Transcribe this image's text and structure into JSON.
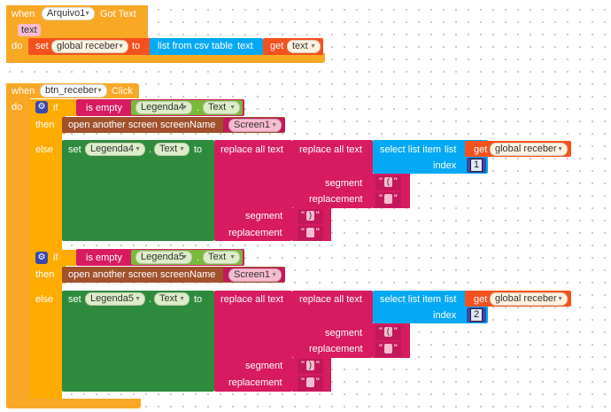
{
  "event1": {
    "when": "when",
    "component": "Arquivo1",
    "event_name": "Got Text",
    "param": "text",
    "do": "do"
  },
  "set_global": {
    "set": "set",
    "var": "global receber",
    "to": "to",
    "list_from_csv": "list from csv table",
    "text_label": "text",
    "get": "get",
    "get_var": "text"
  },
  "event2": {
    "when": "when",
    "component": "btn_receber",
    "event_name": "Click",
    "do": "do"
  },
  "block1": {
    "if": "if",
    "is_empty": "is empty",
    "component": "Legenda4",
    "dot": ".",
    "prop": "Text",
    "then": "then",
    "open_screen": "open another screen",
    "screen_name_label": "screenName",
    "screen": "Screen1",
    "else": "else",
    "set": "set",
    "set_component": "Legenda4",
    "set_prop": "Text",
    "to": "to",
    "replace_outer": "replace all text",
    "replace_inner": "replace all text",
    "select_list": "select list item",
    "list_label": "list",
    "get": "get",
    "get_var": "global receber",
    "index_label": "index",
    "index_value": "1",
    "segment_label": "segment",
    "replacement_label": "replacement",
    "inner_segment": "(",
    "inner_replacement": "",
    "outer_segment": ")",
    "outer_replacement": "",
    "quote": "\""
  },
  "block2": {
    "if": "if",
    "is_empty": "is empty",
    "component": "Legenda5",
    "dot": ".",
    "prop": "Text",
    "then": "then",
    "open_screen": "open another screen",
    "screen_name_label": "screenName",
    "screen": "Screen1",
    "else": "else",
    "set": "set",
    "set_component": "Legenda5",
    "set_prop": "Text",
    "to": "to",
    "replace_outer": "replace all text",
    "replace_inner": "replace all text",
    "select_list": "select list item",
    "list_label": "list",
    "get": "get",
    "get_var": "global receber",
    "index_label": "index",
    "index_value": "2",
    "segment_label": "segment",
    "replacement_label": "replacement",
    "inner_segment": "(",
    "inner_replacement": "",
    "outer_segment": ")",
    "outer_replacement": "",
    "quote": "\""
  },
  "icons": {
    "dropdown": "▼",
    "gear": "⚙"
  },
  "colors": {
    "event": "#f9a825",
    "control": "#ffab00",
    "variable": "#f4511e",
    "list": "#03a9f4",
    "text": "#d81b60",
    "component_set": "#2e8b3d",
    "component_get": "#79b93b",
    "math": "#3949ab",
    "screen": "#a0522d"
  }
}
